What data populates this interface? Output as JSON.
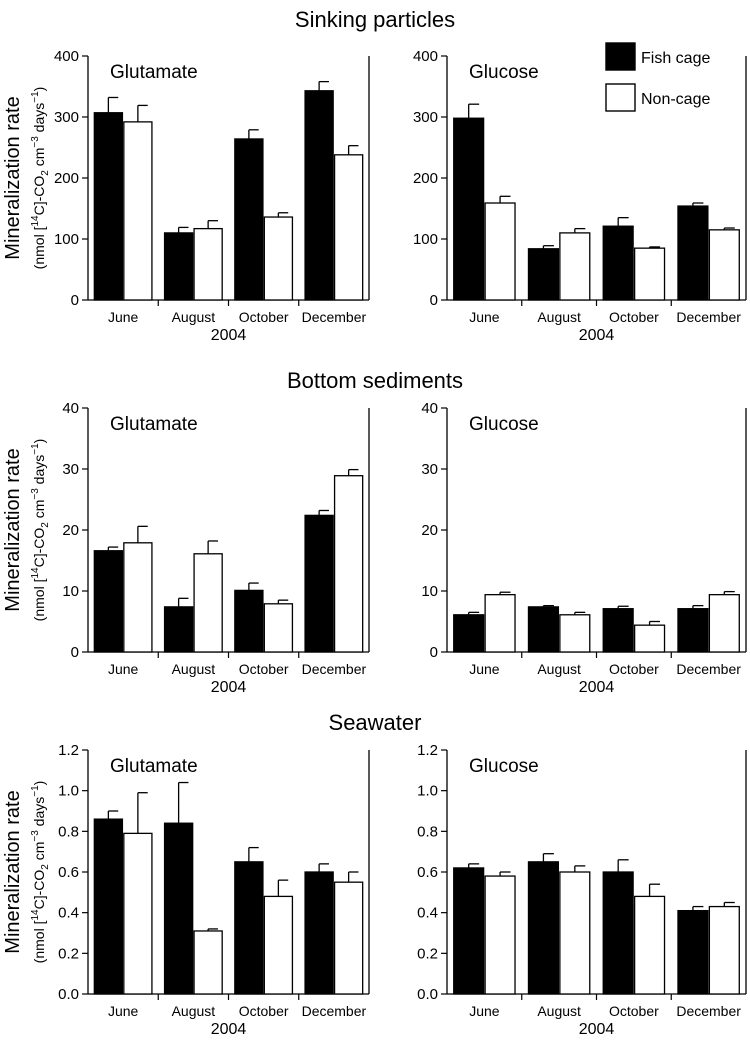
{
  "figure": {
    "ylabel_main": "Mineralization rate",
    "ylabel_unit_parts": [
      "(nmol [",
      "14",
      "C]-CO",
      "2",
      " cm",
      "−3",
      " days",
      "−1",
      ")"
    ]
  },
  "legend": {
    "placement": "top-right",
    "entries": [
      {
        "label": "Fish cage",
        "color": "#000000"
      },
      {
        "label": "Non-cage",
        "color": "#ffffff"
      }
    ]
  },
  "colors": {
    "fish_cage": "#000000",
    "non_cage": "#ffffff",
    "axis": "#000000"
  },
  "chart_data": [
    {
      "type": "bar",
      "section": "Sinking particles",
      "title": "Glutamate",
      "categories": [
        "June",
        "August",
        "October",
        "December"
      ],
      "xlabel": "2004",
      "ylim": [
        0,
        400
      ],
      "yticks": [
        0,
        100,
        200,
        300,
        400
      ],
      "tick_decimals": 0,
      "series": [
        {
          "name": "Fish cage",
          "values": [
            307,
            110,
            264,
            343
          ],
          "errors": [
            25,
            9,
            15,
            15
          ]
        },
        {
          "name": "Non-cage",
          "values": [
            292,
            117,
            136,
            238
          ],
          "errors": [
            27,
            13,
            7,
            15
          ]
        }
      ]
    },
    {
      "type": "bar",
      "section": "Sinking particles",
      "title": "Glucose",
      "categories": [
        "June",
        "August",
        "October",
        "December"
      ],
      "xlabel": "2004",
      "ylim": [
        0,
        400
      ],
      "yticks": [
        0,
        100,
        200,
        300,
        400
      ],
      "tick_decimals": 0,
      "series": [
        {
          "name": "Fish cage",
          "values": [
            298,
            84,
            121,
            154
          ],
          "errors": [
            23,
            5,
            14,
            5
          ]
        },
        {
          "name": "Non-cage",
          "values": [
            159,
            110,
            85,
            115
          ],
          "errors": [
            11,
            7,
            2,
            3
          ]
        }
      ]
    },
    {
      "type": "bar",
      "section": "Bottom sediments",
      "title": "Glutamate",
      "categories": [
        "June",
        "August",
        "October",
        "December"
      ],
      "xlabel": "2004",
      "ylim": [
        0,
        40
      ],
      "yticks": [
        0,
        10,
        20,
        30,
        40
      ],
      "tick_decimals": 0,
      "series": [
        {
          "name": "Fish cage",
          "values": [
            16.6,
            7.4,
            10.1,
            22.4
          ],
          "errors": [
            0.6,
            1.4,
            1.2,
            0.8
          ]
        },
        {
          "name": "Non-cage",
          "values": [
            17.9,
            16.1,
            7.9,
            28.9
          ],
          "errors": [
            2.7,
            2.1,
            0.6,
            1.0
          ]
        }
      ]
    },
    {
      "type": "bar",
      "section": "Bottom sediments",
      "title": "Glucose",
      "categories": [
        "June",
        "August",
        "October",
        "December"
      ],
      "xlabel": "2004",
      "ylim": [
        0,
        40
      ],
      "yticks": [
        0,
        10,
        20,
        30,
        40
      ],
      "tick_decimals": 0,
      "series": [
        {
          "name": "Fish cage",
          "values": [
            6.1,
            7.4,
            7.1,
            7.1
          ],
          "errors": [
            0.4,
            0.2,
            0.4,
            0.5
          ]
        },
        {
          "name": "Non-cage",
          "values": [
            9.4,
            6.1,
            4.4,
            9.4
          ],
          "errors": [
            0.4,
            0.4,
            0.6,
            0.5
          ]
        }
      ]
    },
    {
      "type": "bar",
      "section": "Seawater",
      "title": "Glutamate",
      "categories": [
        "June",
        "August",
        "October",
        "December"
      ],
      "xlabel": "2004",
      "ylim": [
        0,
        1.2
      ],
      "yticks": [
        0,
        0.2,
        0.4,
        0.6,
        0.8,
        1.0,
        1.2
      ],
      "tick_decimals": 1,
      "series": [
        {
          "name": "Fish cage",
          "values": [
            0.86,
            0.84,
            0.65,
            0.6
          ],
          "errors": [
            0.04,
            0.2,
            0.07,
            0.04
          ]
        },
        {
          "name": "Non-cage",
          "values": [
            0.79,
            0.31,
            0.48,
            0.55
          ],
          "errors": [
            0.2,
            0.01,
            0.08,
            0.05
          ]
        }
      ]
    },
    {
      "type": "bar",
      "section": "Seawater",
      "title": "Glucose",
      "categories": [
        "June",
        "August",
        "October",
        "December"
      ],
      "xlabel": "2004",
      "ylim": [
        0,
        1.2
      ],
      "yticks": [
        0,
        0.2,
        0.4,
        0.6,
        0.8,
        1.0,
        1.2
      ],
      "tick_decimals": 1,
      "series": [
        {
          "name": "Fish cage",
          "values": [
            0.62,
            0.65,
            0.6,
            0.41
          ],
          "errors": [
            0.02,
            0.04,
            0.06,
            0.02
          ]
        },
        {
          "name": "Non-cage",
          "values": [
            0.58,
            0.6,
            0.48,
            0.43
          ],
          "errors": [
            0.02,
            0.03,
            0.06,
            0.02
          ]
        }
      ]
    }
  ]
}
